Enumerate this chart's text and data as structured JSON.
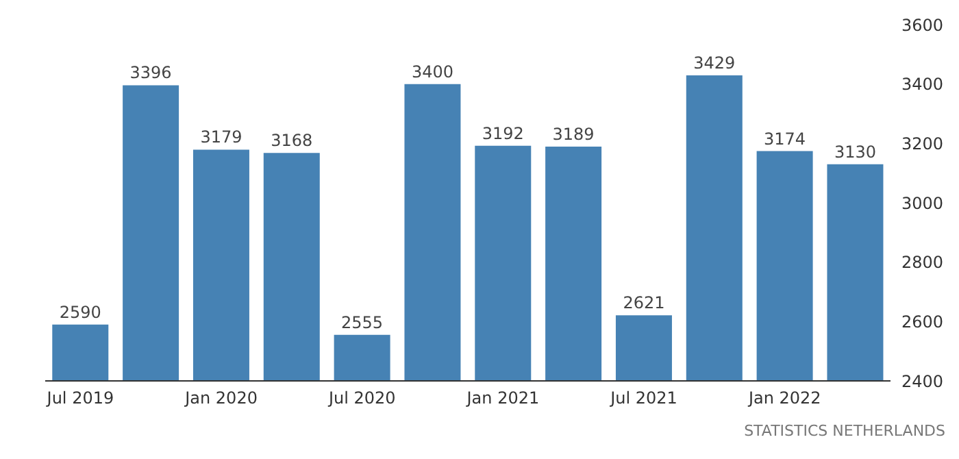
{
  "chart_data": {
    "type": "bar",
    "categories": [
      "Jul 2019",
      null,
      "Jan 2020",
      null,
      "Jul 2020",
      null,
      "Jan 2021",
      null,
      "Jul 2021",
      null,
      "Jan 2022",
      null
    ],
    "values": [
      2590,
      3396,
      3179,
      3168,
      2555,
      3400,
      3192,
      3189,
      2621,
      3429,
      3174,
      3130
    ],
    "color": "#4682b4",
    "ylim": [
      2400,
      3600
    ],
    "yticks": [
      2400,
      2600,
      2800,
      3000,
      3200,
      3400,
      3600
    ],
    "data_labels": true,
    "annotations": [
      "STATISTICS NETHERLANDS"
    ]
  }
}
